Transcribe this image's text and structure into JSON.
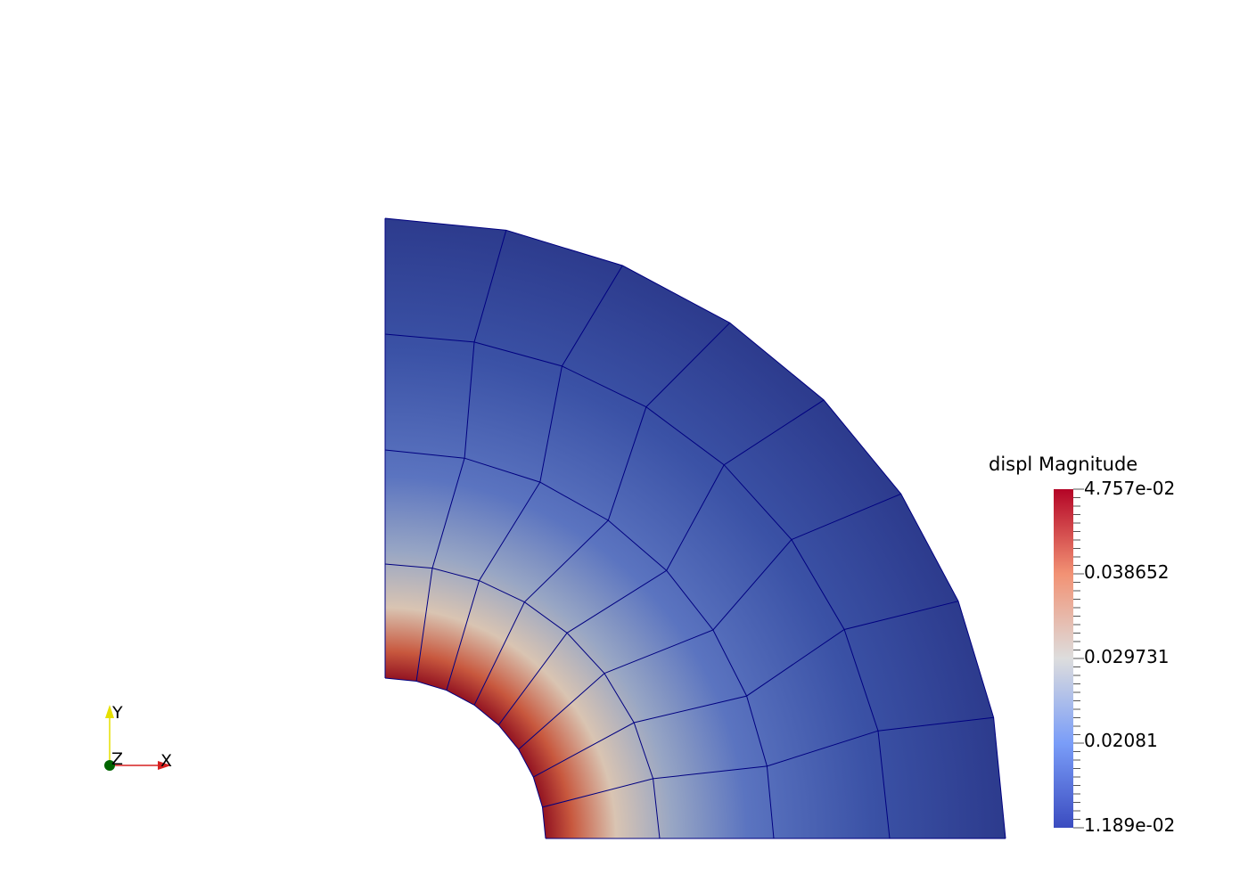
{
  "scalar_bar": {
    "title": "displ Magnitude",
    "max_label": "4.757e-02",
    "min_label": "1.189e-02",
    "tick_labels": [
      "0.038652",
      "0.029731",
      "0.02081"
    ],
    "min_value": 0.01189,
    "max_value": 0.04757,
    "colors": [
      "#3b4cc0",
      "#7a9df8",
      "#dddddd",
      "#f29274",
      "#b40426"
    ]
  },
  "axes": {
    "x_label": "X",
    "y_label": "Y",
    "z_label": "Z",
    "x_color": "#d62020",
    "y_color": "#e6e000",
    "z_color": "#006400"
  },
  "mesh": {
    "outline_color": "#000080",
    "radial_divisions": 4,
    "angular_divisions": 8
  }
}
